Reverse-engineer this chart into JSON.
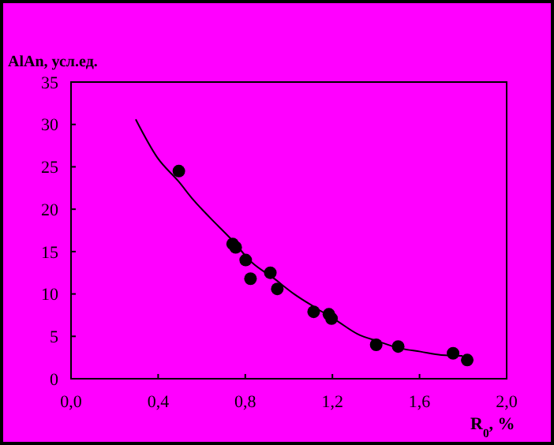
{
  "chart_data": {
    "type": "scatter",
    "title": "AlAn, усл.ед.",
    "xlabel": "R$_{0}$, %",
    "xlim": [
      0,
      2
    ],
    "xticks": [
      {
        "value": 0,
        "label": "0,0"
      },
      {
        "value": 0.4,
        "label": "0,4"
      },
      {
        "value": 0.8,
        "label": "0,8"
      },
      {
        "value": 1.2,
        "label": "1,2"
      },
      {
        "value": 1.6,
        "label": "1,6"
      },
      {
        "value": 2,
        "label": "2,0"
      }
    ],
    "ylim": [
      0,
      35
    ],
    "yticks": [
      0,
      5,
      10,
      15,
      20,
      25,
      30,
      35
    ],
    "grid": false,
    "series": [
      {
        "marker": "circle",
        "color": "#000000",
        "x": [
          0.495,
          0.742,
          0.756,
          0.802,
          0.824,
          0.915,
          0.947,
          1.114,
          1.184,
          1.196,
          1.401,
          1.502,
          1.754,
          1.819
        ],
        "values": [
          24.5,
          15.9,
          15.5,
          14.0,
          11.8,
          12.5,
          10.6,
          7.9,
          7.6,
          7.1,
          4.0,
          3.8,
          3.0,
          2.2
        ]
      },
      {
        "type": "line",
        "color": "#000000",
        "x": [
          0.297,
          0.396,
          0.493,
          0.565,
          0.638,
          0.734,
          0.831,
          0.928,
          1.024,
          1.121,
          1.217,
          1.314,
          1.411,
          1.507,
          1.604,
          1.7,
          1.797
        ],
        "values": [
          30.6,
          26.1,
          23.3,
          21.0,
          19.0,
          16.5,
          13.7,
          11.9,
          10.0,
          8.4,
          6.9,
          5.3,
          4.4,
          3.6,
          3.2,
          2.8,
          2.7
        ]
      }
    ]
  }
}
